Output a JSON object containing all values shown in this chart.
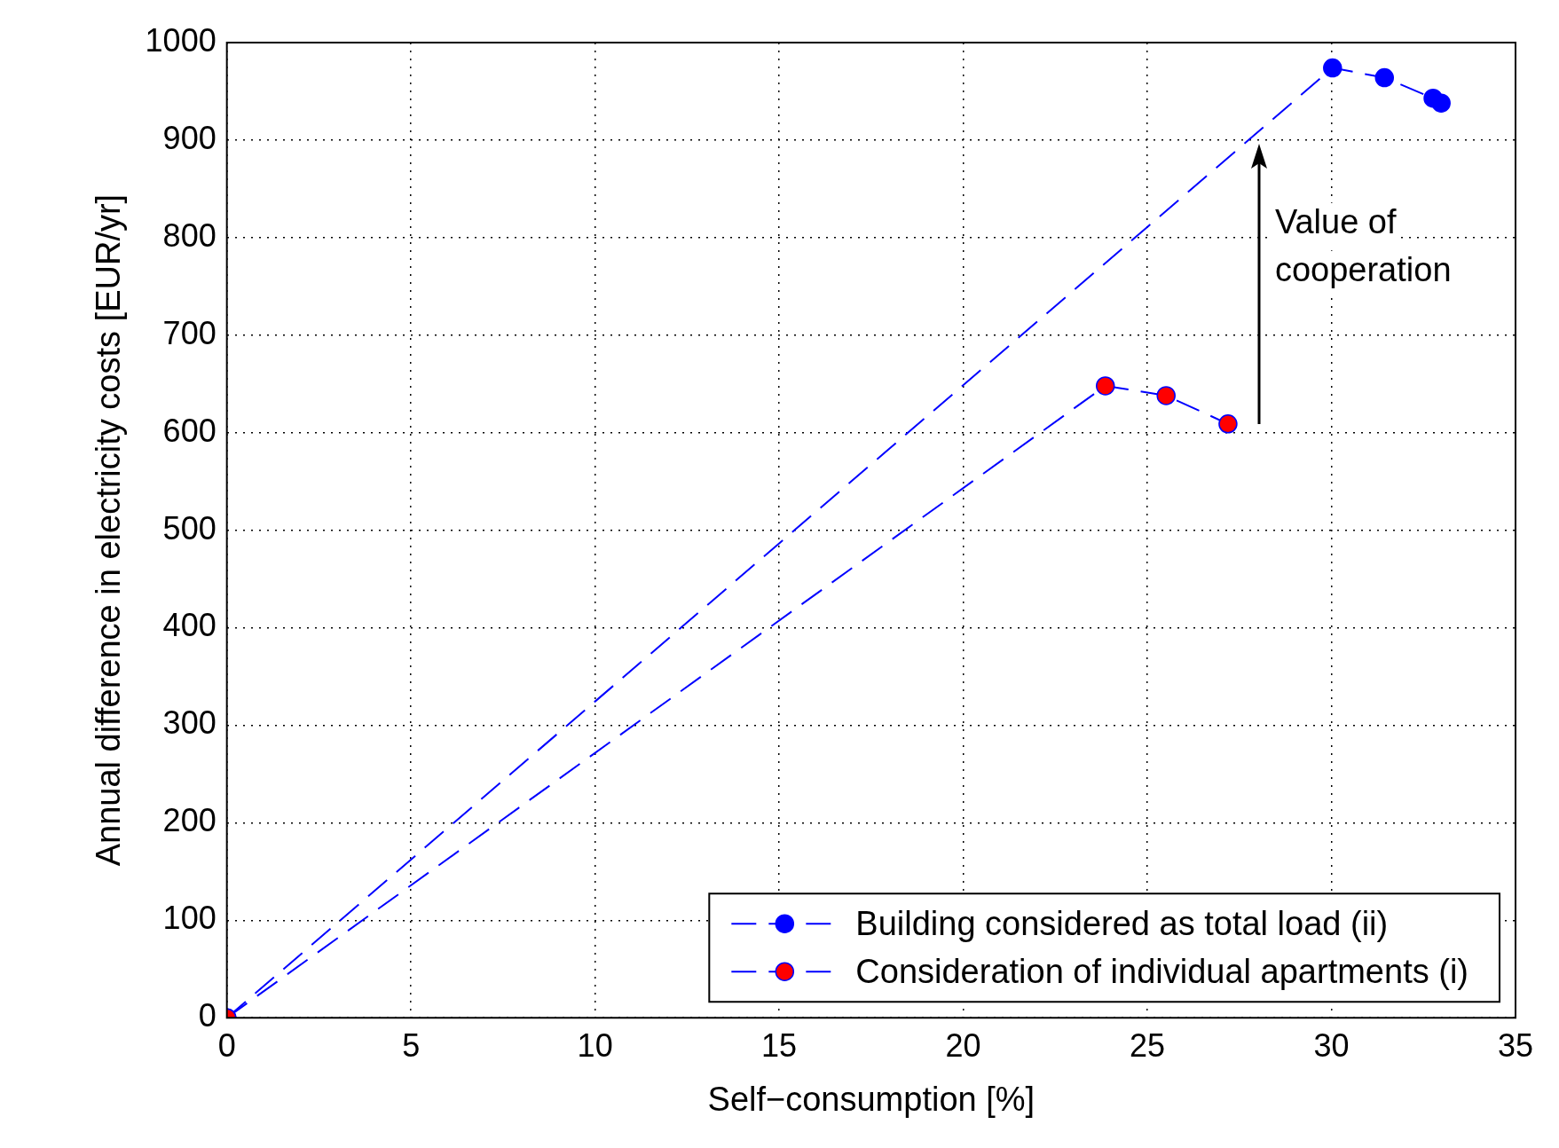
{
  "chart_data": {
    "type": "line",
    "xlabel": "Self−consumption [%]",
    "ylabel": "Annual difference in electricity costs [EUR/yr]",
    "xlim": [
      0,
      35
    ],
    "xticks": [
      0,
      5,
      10,
      15,
      20,
      25,
      30,
      35
    ],
    "ylim": [
      0,
      1000
    ],
    "yticks": [
      0,
      100,
      200,
      300,
      400,
      500,
      600,
      700,
      800,
      900,
      1000
    ],
    "grid": true,
    "legend": "bottom right",
    "marker": "circle",
    "line_style": "dashed",
    "annotations": [
      "Value of cooperation"
    ],
    "series": [
      {
        "name": "Building considered as total load (ii)",
        "color": "#0000ff",
        "x": [
          0,
          30.03,
          31.44,
          32.76,
          32.98
        ],
        "values": [
          0,
          974,
          964,
          943,
          938
        ]
      },
      {
        "name": "Consideration of individual apartments (i)",
        "color": "#ff0000",
        "x": [
          0,
          23.86,
          25.51,
          27.19
        ],
        "values": [
          0,
          648,
          638,
          609
        ]
      }
    ]
  }
}
